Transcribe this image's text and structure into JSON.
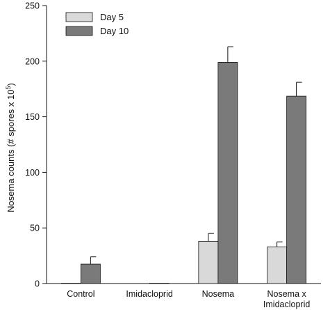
{
  "chart_data": {
    "type": "bar",
    "ylabel": "Nosema counts (# spores x 10",
    "ylabel_superscript": "5",
    "ylabel_close": ")",
    "ylim": [
      0,
      250
    ],
    "yticks": [
      0,
      50,
      100,
      150,
      200,
      250
    ],
    "categories": [
      {
        "lines": [
          "Control"
        ]
      },
      {
        "lines": [
          "Imidacloprid"
        ]
      },
      {
        "lines": [
          "Nosema"
        ]
      },
      {
        "lines": [
          "Nosema x",
          "Imidacloprid"
        ]
      }
    ],
    "series": [
      {
        "name": "Day 5",
        "color": "#d9d9d9",
        "values": [
          0.3,
          0,
          38,
          33
        ],
        "errors": [
          0,
          0,
          7,
          4.5
        ]
      },
      {
        "name": "Day 10",
        "color": "#7a7a7a",
        "values": [
          17.5,
          0.3,
          199,
          168.5
        ],
        "errors": [
          6.5,
          0,
          14,
          12.5
        ]
      }
    ],
    "legend_position": "top-left",
    "grid": false
  }
}
